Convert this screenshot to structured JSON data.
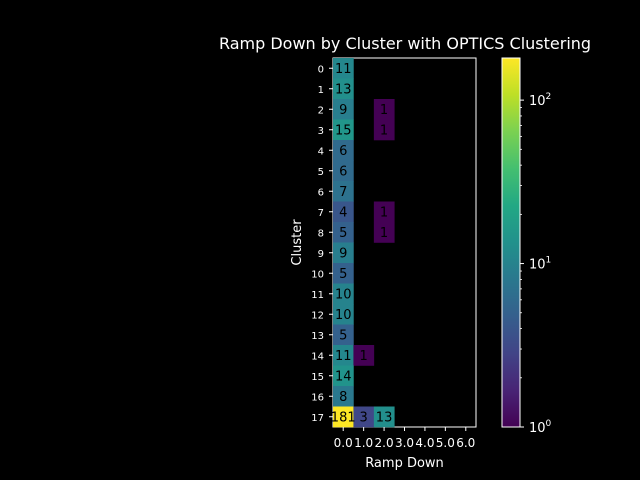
{
  "chart_data": {
    "type": "heatmap",
    "title": "Ramp Down by Cluster with OPTICS Clustering",
    "xlabel": "Ramp Down",
    "ylabel": "Cluster",
    "x_categories": [
      "0.0",
      "1.0",
      "2.0",
      "3.0",
      "4.0",
      "5.0",
      "6.0"
    ],
    "y_categories": [
      "0",
      "1",
      "2",
      "3",
      "4",
      "5",
      "6",
      "7",
      "8",
      "9",
      "10",
      "11",
      "12",
      "13",
      "14",
      "15",
      "16",
      "17"
    ],
    "values": [
      [
        11,
        null,
        null,
        null,
        null,
        null,
        null
      ],
      [
        13,
        null,
        null,
        null,
        null,
        null,
        null
      ],
      [
        9,
        null,
        1,
        null,
        null,
        null,
        null
      ],
      [
        15,
        null,
        1,
        null,
        null,
        null,
        null
      ],
      [
        6,
        null,
        null,
        null,
        null,
        null,
        null
      ],
      [
        6,
        null,
        null,
        null,
        null,
        null,
        null
      ],
      [
        7,
        null,
        null,
        null,
        null,
        null,
        null
      ],
      [
        4,
        null,
        1,
        null,
        null,
        null,
        null
      ],
      [
        5,
        null,
        1,
        null,
        null,
        null,
        null
      ],
      [
        9,
        null,
        null,
        null,
        null,
        null,
        null
      ],
      [
        5,
        null,
        null,
        null,
        null,
        null,
        null
      ],
      [
        10,
        null,
        null,
        null,
        null,
        null,
        null
      ],
      [
        10,
        null,
        null,
        null,
        null,
        null,
        null
      ],
      [
        5,
        null,
        null,
        null,
        null,
        null,
        null
      ],
      [
        11,
        1,
        null,
        null,
        null,
        null,
        null
      ],
      [
        14,
        null,
        null,
        null,
        null,
        null,
        null
      ],
      [
        8,
        null,
        null,
        null,
        null,
        null,
        null
      ],
      [
        181,
        3,
        13,
        null,
        null,
        null,
        null
      ]
    ],
    "color_scale": "log",
    "colormap": "viridis",
    "vmin": 1,
    "vmax": 181,
    "colorbar_ticks": [
      {
        "value": 1,
        "base": "10",
        "exp": "0"
      },
      {
        "value": 10,
        "base": "10",
        "exp": "1"
      },
      {
        "value": 100,
        "base": "10",
        "exp": "2"
      }
    ],
    "background": "#000000"
  }
}
